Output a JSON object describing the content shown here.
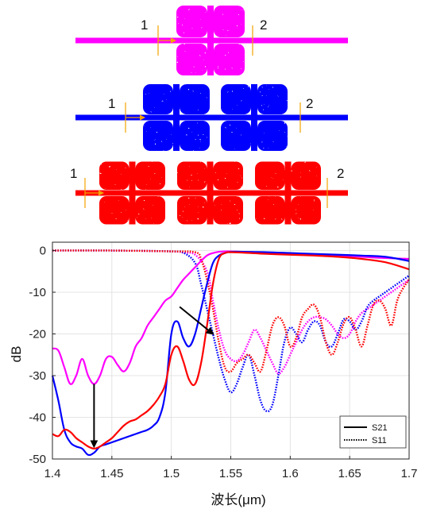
{
  "devices": [
    {
      "id": "device-1",
      "color": "#ff00ff",
      "cells": 1,
      "port_in": "1",
      "port_out": "2"
    },
    {
      "id": "device-2",
      "color": "#0000ff",
      "cells": 2,
      "port_in": "1",
      "port_out": "2"
    },
    {
      "id": "device-3",
      "color": "#ff0000",
      "cells": 3,
      "port_in": "1",
      "port_out": "2"
    }
  ],
  "marker_color": "#f4a300",
  "chart_data": {
    "type": "line",
    "xlabel": "波长(μm)",
    "ylabel": "dB",
    "xlim": [
      1.4,
      1.7
    ],
    "ylim": [
      -50,
      2
    ],
    "xticks": [
      1.4,
      1.45,
      1.5,
      1.55,
      1.6,
      1.65,
      1.7
    ],
    "xtick_labels": [
      "1.4",
      "1.45",
      "1.5",
      "1.55",
      "1.6",
      "1.65",
      "1.7"
    ],
    "yticks": [
      0,
      -10,
      -20,
      -30,
      -40,
      -50
    ],
    "ytick_labels": [
      "0",
      "-10",
      "-20",
      "-30",
      "-40",
      "-50"
    ],
    "grid": true,
    "legend": {
      "position": "bottom-right",
      "entries": [
        {
          "label": "S21",
          "style": "solid"
        },
        {
          "label": "S11",
          "style": "dotted"
        }
      ]
    },
    "series": [
      {
        "metric": "S21",
        "device": "device-1",
        "color": "#ff00ff",
        "dash": "solid",
        "x": [
          1.4,
          1.405,
          1.41,
          1.415,
          1.42,
          1.425,
          1.43,
          1.435,
          1.44,
          1.445,
          1.45,
          1.455,
          1.46,
          1.465,
          1.47,
          1.475,
          1.48,
          1.485,
          1.49,
          1.495,
          1.5,
          1.505,
          1.51,
          1.515,
          1.52,
          1.525,
          1.53,
          1.535,
          1.54,
          1.545,
          1.55,
          1.56,
          1.58,
          1.6,
          1.62,
          1.64,
          1.66,
          1.68,
          1.7
        ],
        "y": [
          -23.5,
          -24,
          -28,
          -32,
          -30,
          -26,
          -30,
          -32,
          -30,
          -26,
          -25.5,
          -27.5,
          -29,
          -27,
          -23,
          -21,
          -18,
          -16,
          -14,
          -12,
          -11,
          -9,
          -7,
          -5.5,
          -4,
          -2.5,
          -1.2,
          -0.6,
          -0.3,
          -0.2,
          -0.2,
          -0.3,
          -0.5,
          -0.8,
          -1.0,
          -1.2,
          -1.5,
          -1.8,
          -2.0
        ]
      },
      {
        "metric": "S21",
        "device": "device-2",
        "color": "#0000ff",
        "dash": "solid",
        "x": [
          1.4,
          1.405,
          1.41,
          1.415,
          1.42,
          1.425,
          1.43,
          1.435,
          1.44,
          1.445,
          1.45,
          1.455,
          1.46,
          1.465,
          1.47,
          1.475,
          1.48,
          1.485,
          1.49,
          1.495,
          1.5,
          1.505,
          1.51,
          1.515,
          1.52,
          1.525,
          1.53,
          1.535,
          1.54,
          1.545,
          1.55,
          1.56,
          1.58,
          1.6,
          1.62,
          1.64,
          1.66,
          1.68,
          1.7
        ],
        "y": [
          -30,
          -36,
          -43,
          -46,
          -47,
          -47.5,
          -49,
          -48.5,
          -47,
          -46.5,
          -46,
          -45.5,
          -45,
          -44.5,
          -44,
          -43.5,
          -43,
          -42,
          -40,
          -34,
          -20,
          -17,
          -21,
          -23,
          -20,
          -14,
          -8,
          -3,
          -1.2,
          -0.6,
          -0.3,
          -0.3,
          -0.4,
          -0.6,
          -0.8,
          -1.0,
          -1.2,
          -1.5,
          -2.5
        ]
      },
      {
        "metric": "S21",
        "device": "device-3",
        "color": "#ff0000",
        "dash": "solid",
        "x": [
          1.4,
          1.405,
          1.41,
          1.415,
          1.42,
          1.425,
          1.43,
          1.435,
          1.44,
          1.445,
          1.45,
          1.455,
          1.46,
          1.465,
          1.47,
          1.475,
          1.48,
          1.485,
          1.49,
          1.495,
          1.5,
          1.505,
          1.51,
          1.515,
          1.52,
          1.525,
          1.53,
          1.535,
          1.54,
          1.545,
          1.55,
          1.56,
          1.58,
          1.6,
          1.62,
          1.64,
          1.66,
          1.68,
          1.7
        ],
        "y": [
          -44,
          -44.5,
          -43,
          -43.5,
          -45,
          -46,
          -47,
          -47.5,
          -47,
          -46,
          -45,
          -43.5,
          -42,
          -41,
          -40.5,
          -39.5,
          -38.5,
          -37,
          -35,
          -32,
          -25,
          -23,
          -26.5,
          -31,
          -32,
          -27,
          -18,
          -8,
          -2,
          -0.6,
          -0.4,
          -0.5,
          -0.8,
          -1.0,
          -1.2,
          -1.5,
          -2.0,
          -2.8,
          -4.5
        ]
      },
      {
        "metric": "S11",
        "device": "device-1",
        "color": "#ff00ff",
        "dash": "dotted",
        "x": [
          1.4,
          1.45,
          1.5,
          1.51,
          1.52,
          1.53,
          1.535,
          1.54,
          1.545,
          1.55,
          1.555,
          1.56,
          1.565,
          1.57,
          1.575,
          1.58,
          1.585,
          1.59,
          1.595,
          1.6,
          1.605,
          1.61,
          1.615,
          1.62,
          1.625,
          1.63,
          1.635,
          1.64,
          1.645,
          1.65,
          1.655,
          1.66,
          1.665,
          1.67,
          1.675,
          1.68,
          1.685,
          1.69,
          1.695,
          1.7
        ],
        "y": [
          0,
          0,
          -0.2,
          -0.5,
          -1,
          -5,
          -12,
          -19,
          -24,
          -26,
          -26.5,
          -25,
          -22,
          -19,
          -21,
          -24,
          -27,
          -29.5,
          -28,
          -25,
          -22,
          -19,
          -17,
          -16,
          -16,
          -16.5,
          -18,
          -20,
          -21,
          -20,
          -17,
          -15,
          -14,
          -13,
          -12,
          -11,
          -10,
          -9,
          -8,
          -7
        ]
      },
      {
        "metric": "S11",
        "device": "device-2",
        "color": "#0000ff",
        "dash": "dotted",
        "x": [
          1.4,
          1.45,
          1.5,
          1.51,
          1.52,
          1.525,
          1.53,
          1.535,
          1.54,
          1.545,
          1.55,
          1.555,
          1.56,
          1.565,
          1.57,
          1.575,
          1.58,
          1.585,
          1.59,
          1.595,
          1.6,
          1.605,
          1.61,
          1.615,
          1.62,
          1.625,
          1.63,
          1.635,
          1.64,
          1.645,
          1.65,
          1.655,
          1.66,
          1.665,
          1.67,
          1.675,
          1.68,
          1.69,
          1.7
        ],
        "y": [
          0,
          0,
          -0.2,
          -0.5,
          -3,
          -8,
          -14,
          -20,
          -26,
          -31,
          -34,
          -32,
          -28,
          -25,
          -30,
          -36,
          -38.5,
          -37,
          -30,
          -22,
          -18.5,
          -20,
          -22,
          -19,
          -17,
          -18,
          -22,
          -23,
          -20,
          -16.5,
          -17,
          -19,
          -17,
          -13.5,
          -12,
          -11,
          -10,
          -8,
          -6
        ]
      },
      {
        "metric": "S11",
        "device": "device-3",
        "color": "#ff0000",
        "dash": "dotted",
        "x": [
          1.4,
          1.45,
          1.5,
          1.52,
          1.525,
          1.53,
          1.535,
          1.54,
          1.545,
          1.55,
          1.555,
          1.56,
          1.565,
          1.57,
          1.575,
          1.58,
          1.585,
          1.59,
          1.595,
          1.6,
          1.605,
          1.61,
          1.615,
          1.62,
          1.625,
          1.63,
          1.635,
          1.64,
          1.645,
          1.65,
          1.655,
          1.66,
          1.665,
          1.67,
          1.675,
          1.68,
          1.685,
          1.69,
          1.695,
          1.7
        ],
        "y": [
          0,
          0,
          -0.2,
          -0.4,
          -2,
          -7,
          -14,
          -22,
          -28,
          -29,
          -27,
          -26,
          -25,
          -27,
          -29,
          -24,
          -18,
          -16,
          -18,
          -23,
          -21,
          -16,
          -14,
          -13,
          -16,
          -22,
          -25,
          -22,
          -17.5,
          -16,
          -19,
          -23,
          -18,
          -13,
          -12,
          -14,
          -18,
          -12,
          -9,
          -7
        ]
      }
    ],
    "annotations": [
      {
        "type": "arrow",
        "from": [
          1.435,
          -32
        ],
        "to": [
          1.435,
          -47
        ]
      },
      {
        "type": "arrow",
        "from": [
          1.507,
          -13.5
        ],
        "to": [
          1.535,
          -20
        ]
      }
    ]
  }
}
